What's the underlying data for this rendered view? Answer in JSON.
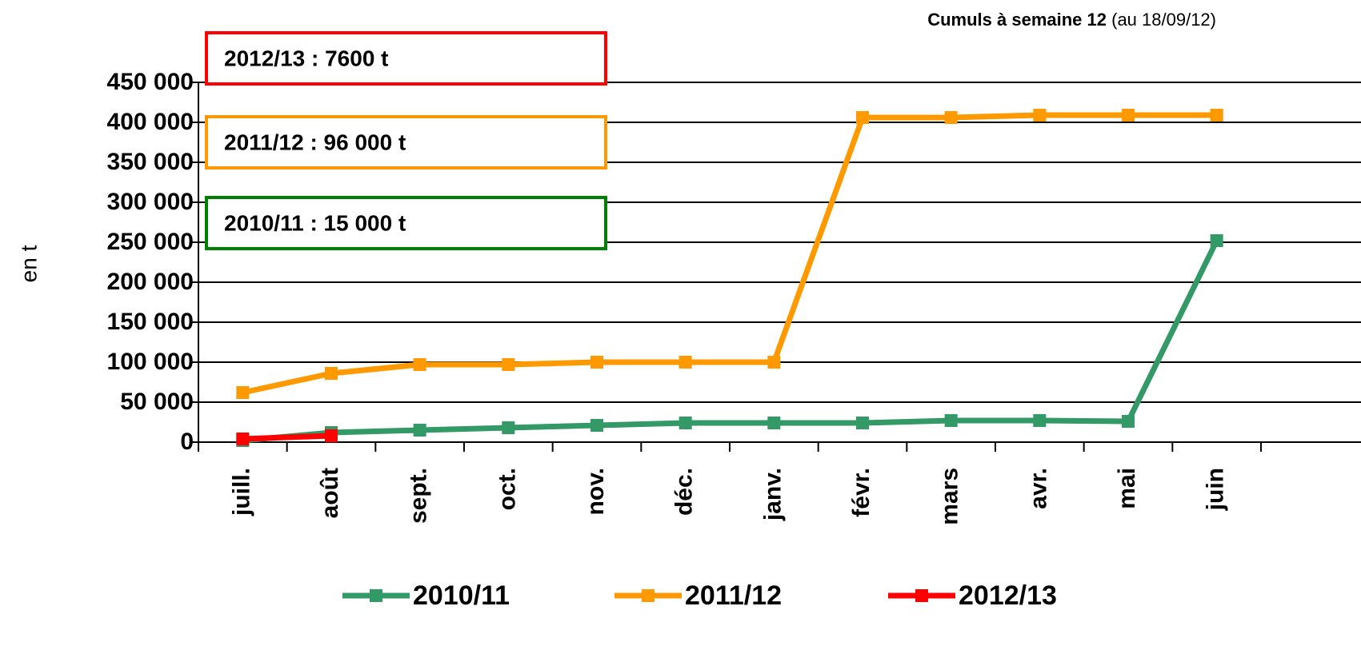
{
  "chart_data": {
    "type": "line",
    "note_bold": "Cumuls à semaine 12",
    "note": "(au 18/09/12)",
    "y_label": "en t",
    "categories": [
      "juill.",
      "août",
      "sept.",
      "oct.",
      "nov.",
      "déc.",
      "janv.",
      "févr.",
      "mars",
      "avr.",
      "mai",
      "juin"
    ],
    "series": [
      {
        "name": "2010/11",
        "color": "#339966",
        "values": [
          2000,
          12000,
          15000,
          18000,
          21000,
          24000,
          24000,
          24000,
          27000,
          27000,
          26000,
          252000
        ]
      },
      {
        "name": "2011/12",
        "color": "#ff9900",
        "values": [
          62000,
          86000,
          97000,
          97000,
          100000,
          100000,
          100000,
          406000,
          406000,
          409000,
          409000,
          409000
        ]
      },
      {
        "name": "2012/13",
        "color": "#ff0000",
        "values": [
          4000,
          8000,
          null,
          null,
          null,
          null,
          null,
          null,
          null,
          null,
          null,
          null
        ]
      }
    ],
    "annotations": [
      {
        "text": "2012/13 : 7600 t",
        "color": "#ff0000"
      },
      {
        "text": "2011/12 : 96 000 t",
        "color": "#ff9900"
      },
      {
        "text": "2010/11 : 15 000 t",
        "color": "#008000"
      }
    ],
    "ylim": [
      0,
      450000
    ],
    "yticks": [
      0,
      {
        "value": 50000,
        "label": "50 000"
      },
      {
        "value": 100000,
        "label": "100 000"
      },
      {
        "value": 150000,
        "label": "150 000"
      },
      {
        "value": 200000,
        "label": "200 000"
      },
      {
        "value": 250000,
        "label": "250 000"
      },
      {
        "value": 300000,
        "label": "300 000"
      },
      {
        "value": 350000,
        "label": "350 000"
      },
      {
        "value": 400000,
        "label": "400 000"
      },
      {
        "value": 450000,
        "label": "450 000"
      }
    ],
    "grid": true
  }
}
